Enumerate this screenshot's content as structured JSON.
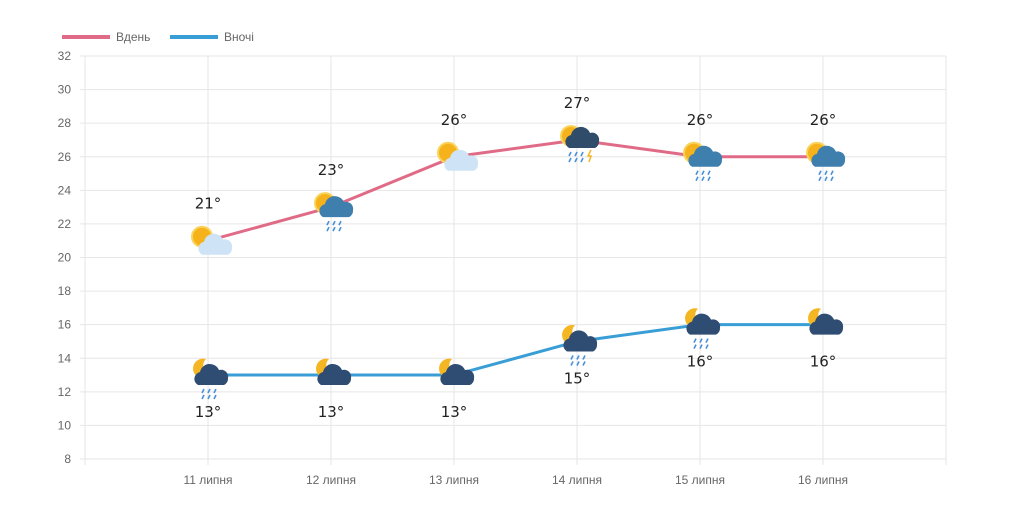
{
  "chart_data": {
    "type": "line",
    "categories": [
      "11 липня",
      "12 липня",
      "13 липня",
      "14 липня",
      "15 липня",
      "16 липня"
    ],
    "series": [
      {
        "name": "Вдень",
        "color": "#e06b87",
        "values": [
          21,
          23,
          26,
          27,
          26,
          26
        ],
        "labels": [
          "21°",
          "23°",
          "26°",
          "27°",
          "26°",
          "26°"
        ],
        "icons": [
          "sun-light-cloud-icon",
          "sun-cloud-rain-icon",
          "sun-light-cloud-icon",
          "sun-thunderstorm-icon",
          "sun-cloud-rain-icon",
          "sun-cloud-rain-icon"
        ]
      },
      {
        "name": "Вночі",
        "color": "#3a9ed6",
        "values": [
          13,
          13,
          13,
          15,
          16,
          16
        ],
        "labels": [
          "13°",
          "13°",
          "13°",
          "15°",
          "16°",
          "16°"
        ],
        "icons": [
          "moon-cloud-rain-icon",
          "moon-cloud-icon",
          "moon-cloud-icon",
          "moon-cloud-rain-icon",
          "moon-cloud-rain-icon",
          "moon-cloud-icon"
        ]
      }
    ],
    "ylim": [
      8,
      32
    ],
    "yticks": [
      "8",
      "10",
      "12",
      "14",
      "16",
      "18",
      "20",
      "22",
      "24",
      "26",
      "28",
      "30",
      "32"
    ],
    "grid": true,
    "legend": "top-left"
  }
}
